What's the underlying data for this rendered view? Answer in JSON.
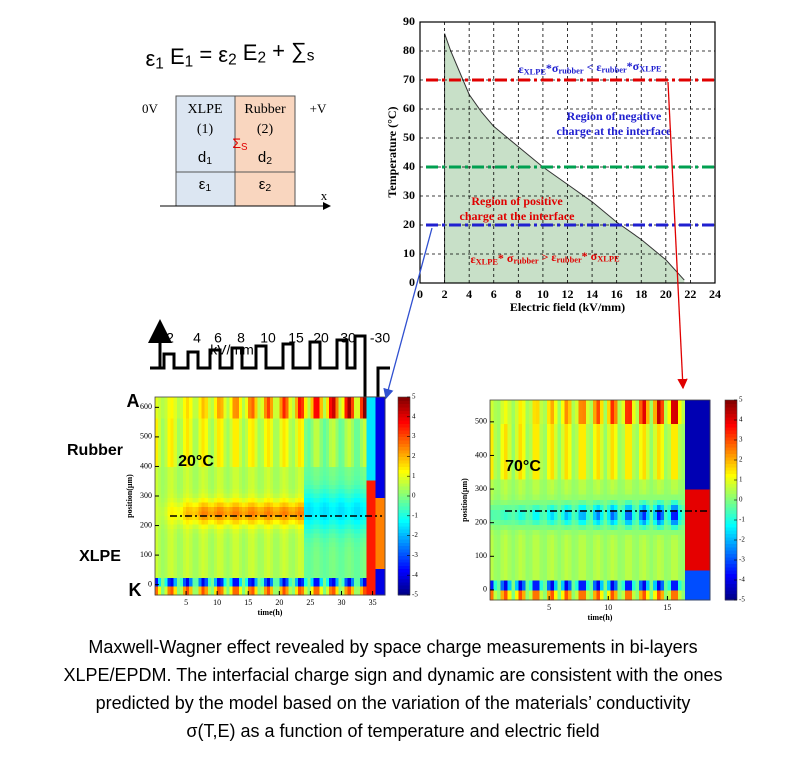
{
  "equation": [
    "ε",
    "1",
    " E",
    "1",
    " = ε",
    "2",
    " E",
    "2",
    " + ∑",
    "s"
  ],
  "diagram": {
    "left": "0V",
    "right": "+V",
    "axis": "x",
    "interface": [
      "Σ",
      "S"
    ],
    "layers": [
      {
        "name": "XLPE",
        "index": "(1)",
        "thickness": [
          "d",
          "1"
        ],
        "permittivity": [
          "ε",
          "1"
        ]
      },
      {
        "name": "Rubber",
        "index": "(2)",
        "thickness": [
          "d",
          "2"
        ],
        "permittivity": [
          "ε",
          "2"
        ]
      }
    ]
  },
  "waveform": {
    "levels": [
      "2",
      "4",
      "6",
      "8",
      "10",
      "15",
      "20",
      "30",
      "-30"
    ],
    "unit": "kV/mm"
  },
  "chart_data": [
    {
      "type": "area",
      "xlabel": "Electric field (kV/mm)",
      "ylabel": "Temperature (°C)",
      "xlim": [
        0,
        24
      ],
      "xticks": [
        0,
        2,
        4,
        6,
        8,
        10,
        12,
        14,
        16,
        18,
        20,
        22,
        24
      ],
      "ylim": [
        0,
        90
      ],
      "yticks": [
        0,
        10,
        20,
        30,
        40,
        50,
        60,
        70,
        80,
        90
      ],
      "grid": true,
      "x": [
        2,
        2.5,
        3,
        4,
        5,
        6,
        8,
        10,
        12,
        14,
        16,
        18,
        20,
        21.5
      ],
      "series": [
        {
          "color": "#c8e0c8",
          "values": [
            86,
            80,
            75,
            65,
            59,
            54,
            47,
            40,
            34,
            28,
            21,
            15,
            8,
            1
          ]
        }
      ],
      "hlines": [
        {
          "value": 70,
          "color": "#e00000"
        },
        {
          "value": 40,
          "color": "#00a050"
        },
        {
          "value": 20,
          "color": "#2020d0"
        }
      ],
      "annotations": [
        {
          "parts": [
            "ε",
            "XLPE",
            "*σ",
            "rubber",
            " < ε",
            "rubber",
            "*σ",
            "XLPE"
          ],
          "color": "#2020d0"
        },
        {
          "lines": [
            "Region of negative",
            "charge at the interface"
          ],
          "color": "#2020d0"
        },
        {
          "lines": [
            "Region of positive",
            "charge at the interface"
          ],
          "color": "#e00000"
        },
        {
          "parts": [
            "ε",
            "XLPE",
            "* σ",
            "rubber",
            " > ε",
            "rubber",
            "* σ",
            "XLPE"
          ],
          "color": "#e00000"
        }
      ]
    },
    {
      "type": "heatmap",
      "xlabel": "time(h)",
      "ylabel": "position(µm)",
      "xlim": [
        0,
        37
      ],
      "xticks": [
        5,
        10,
        15,
        20,
        25,
        30,
        35
      ],
      "ylim": [
        -35,
        635
      ],
      "yticks": [
        0,
        100,
        200,
        300,
        400,
        500,
        600
      ],
      "colorbar": {
        "lim": [
          -5,
          5
        ],
        "ticks": [
          5,
          4,
          3,
          2,
          1,
          0,
          -1,
          -2,
          -3,
          -4,
          -5
        ]
      },
      "annotation": "20°C",
      "labels": [
        "A",
        "Rubber",
        "XLPE",
        "K"
      ]
    },
    {
      "type": "heatmap",
      "xlabel": "time(h)",
      "ylabel": "position(µm)",
      "xlim": [
        0,
        18.6
      ],
      "xticks": [
        5,
        10,
        15
      ],
      "ylim": [
        -30,
        565
      ],
      "yticks": [
        0,
        100,
        200,
        300,
        400,
        500
      ],
      "colorbar": {
        "lim": [
          -5,
          5
        ],
        "ticks": [
          5,
          4,
          3,
          2,
          1,
          0,
          -1,
          -2,
          -3,
          -4,
          -5
        ]
      },
      "annotation": "70°C"
    }
  ],
  "caption": [
    "Maxwell-Wagner effect revealed by space charge measurements in bi-layers",
    "XLPE/EPDM. The interfacial charge sign and dynamic are consistent with the ones",
    "predicted by the model based on the variation of the materials’ conductivity",
    "σ(T,E) as a function of temperature and electric field"
  ]
}
